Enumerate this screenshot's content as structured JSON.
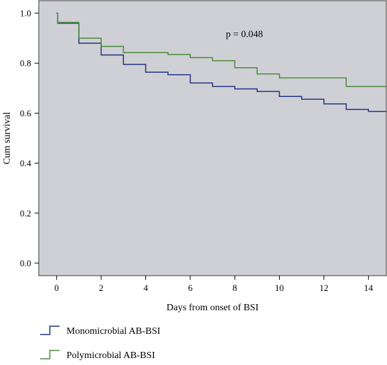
{
  "chart_data": {
    "type": "line",
    "step": true,
    "xlabel": "Days from onset of BSI",
    "ylabel": "Cum survival",
    "xlim": [
      -0.8,
      14.8
    ],
    "ylim": [
      -0.05,
      1.05
    ],
    "xticks": [
      0,
      2,
      4,
      6,
      8,
      10,
      12,
      14
    ],
    "yticks": [
      0.0,
      0.2,
      0.4,
      0.6,
      0.8,
      1.0
    ],
    "xtick_labels": [
      "0",
      "2",
      "4",
      "6",
      "8",
      "10",
      "12",
      "14"
    ],
    "ytick_labels": [
      "0.0",
      "0.2",
      "0.4",
      "0.6",
      "0.8",
      "1.0"
    ],
    "grid": false,
    "background": "#cfd0d5",
    "annotation": "p = 0.048",
    "legend_position": "bottom-left",
    "series": [
      {
        "name": "Monomicrobial AB-BSI",
        "color": "#24337e",
        "x": [
          0,
          0.05,
          1,
          2,
          3,
          4,
          5,
          6,
          7,
          8,
          9,
          10,
          11,
          12,
          13,
          14,
          14.8
        ],
        "y": [
          1.0,
          0.96,
          0.88,
          0.833,
          0.795,
          0.764,
          0.754,
          0.721,
          0.707,
          0.697,
          0.687,
          0.667,
          0.656,
          0.637,
          0.615,
          0.607,
          0.607
        ]
      },
      {
        "name": "Polymicrobial AB-BSI",
        "color": "#4a8c3c",
        "x": [
          0,
          0.05,
          1,
          2,
          3,
          5,
          6,
          7,
          8,
          9,
          10,
          13,
          14.8
        ],
        "y": [
          1.0,
          0.963,
          0.9,
          0.867,
          0.843,
          0.835,
          0.822,
          0.81,
          0.782,
          0.757,
          0.741,
          0.707,
          0.707
        ]
      }
    ]
  }
}
